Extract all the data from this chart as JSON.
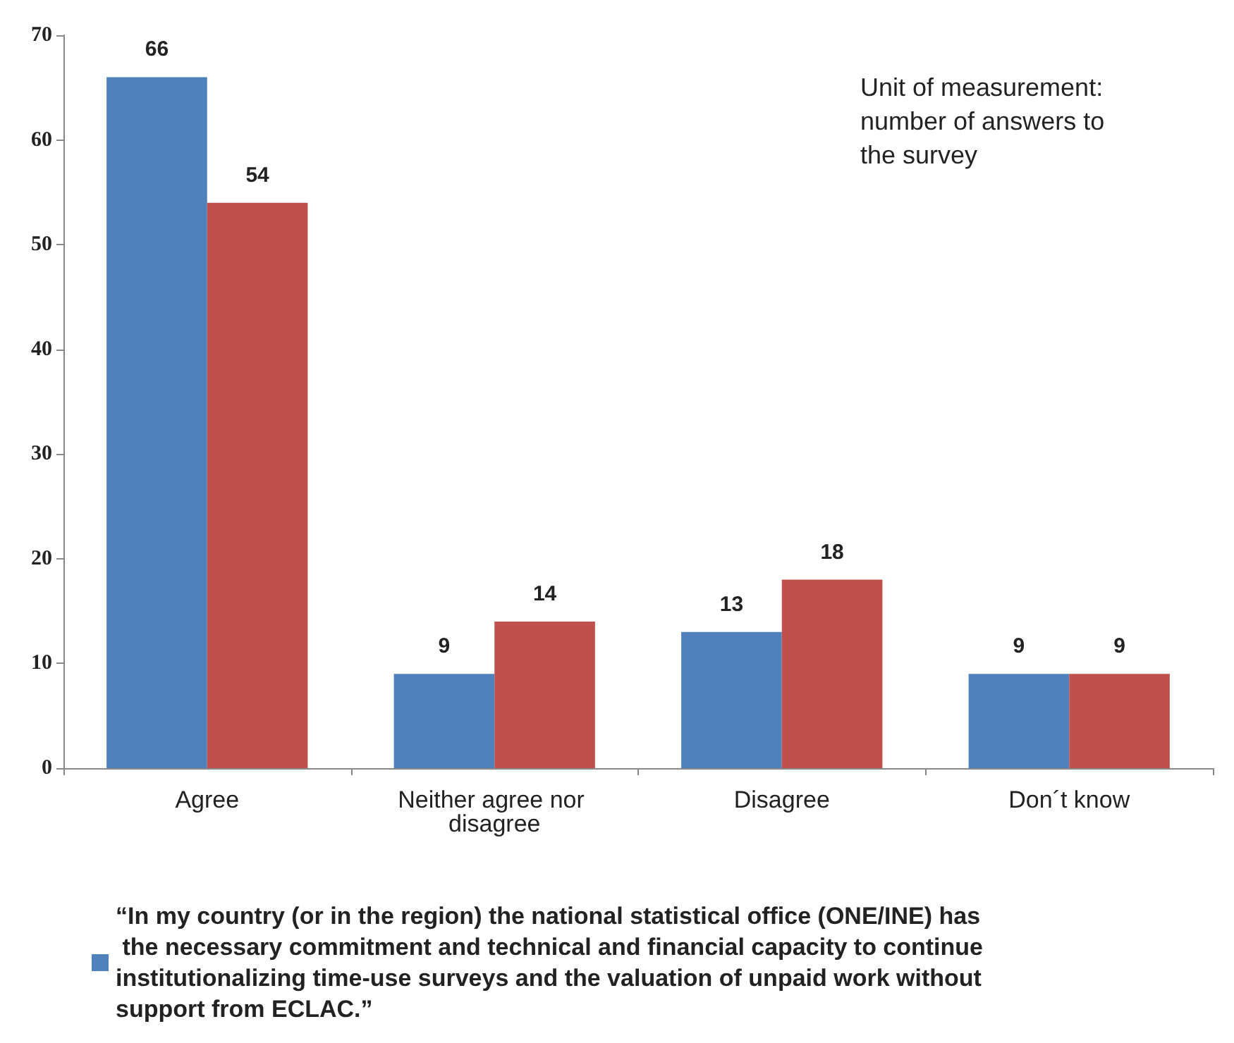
{
  "chart_data": {
    "type": "bar",
    "categories": [
      "Agree",
      "Neither agree nor disagree",
      "Disagree",
      "Don´t know"
    ],
    "series": [
      {
        "name": "“In my country (or in the region) the national statistical office (ONE/INE) has the necessary commitment and technical and financial capacity to continue institutionalizing time-use surveys and the valuation of unpaid work without support from ECLAC.”",
        "color": "#4f81bd",
        "values": [
          66,
          9,
          13,
          9
        ]
      },
      {
        "color": "#c0504d",
        "values": [
          54,
          14,
          18,
          9
        ]
      }
    ],
    "ylim": [
      0,
      70
    ],
    "yticks": [
      0,
      10,
      20,
      30,
      40,
      50,
      60,
      70
    ],
    "grid": false,
    "data_labels": true,
    "legend": "bottom",
    "annotations": [
      "Unit of measurement: number of answers to the survey"
    ]
  }
}
